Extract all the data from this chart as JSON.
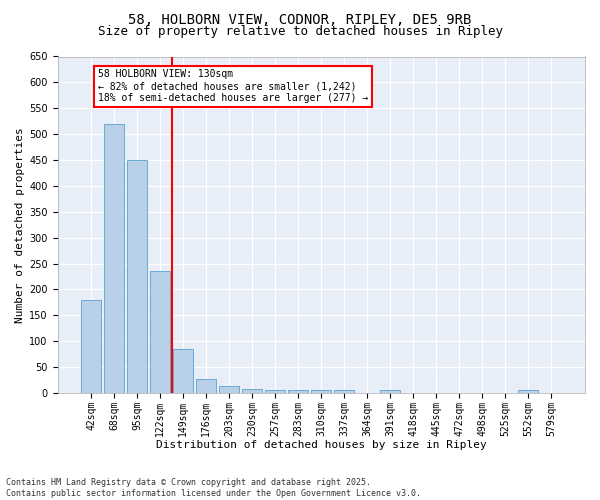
{
  "title": "58, HOLBORN VIEW, CODNOR, RIPLEY, DE5 9RB",
  "subtitle": "Size of property relative to detached houses in Ripley",
  "xlabel": "Distribution of detached houses by size in Ripley",
  "ylabel": "Number of detached properties",
  "categories": [
    "42sqm",
    "68sqm",
    "95sqm",
    "122sqm",
    "149sqm",
    "176sqm",
    "203sqm",
    "230sqm",
    "257sqm",
    "283sqm",
    "310sqm",
    "337sqm",
    "364sqm",
    "391sqm",
    "418sqm",
    "445sqm",
    "472sqm",
    "498sqm",
    "525sqm",
    "552sqm",
    "579sqm"
  ],
  "values": [
    180,
    520,
    450,
    235,
    85,
    27,
    14,
    8,
    5,
    5,
    5,
    5,
    0,
    5,
    0,
    0,
    0,
    0,
    0,
    5,
    0
  ],
  "bar_color": "#b8d0e8",
  "bar_edge_color": "#6aaad4",
  "vline_x_index": 3,
  "vline_color": "red",
  "annotation_line1": "58 HOLBORN VIEW: 130sqm",
  "annotation_line2": "← 82% of detached houses are smaller (1,242)",
  "annotation_line3": "18% of semi-detached houses are larger (277) →",
  "ylim": [
    0,
    650
  ],
  "yticks": [
    0,
    50,
    100,
    150,
    200,
    250,
    300,
    350,
    400,
    450,
    500,
    550,
    600,
    650
  ],
  "plot_bg_color": "#e8eef8",
  "footer_line1": "Contains HM Land Registry data © Crown copyright and database right 2025.",
  "footer_line2": "Contains public sector information licensed under the Open Government Licence v3.0.",
  "title_fontsize": 10,
  "subtitle_fontsize": 9,
  "xlabel_fontsize": 8,
  "ylabel_fontsize": 8,
  "tick_fontsize": 7,
  "ann_fontsize": 7,
  "footer_fontsize": 6
}
